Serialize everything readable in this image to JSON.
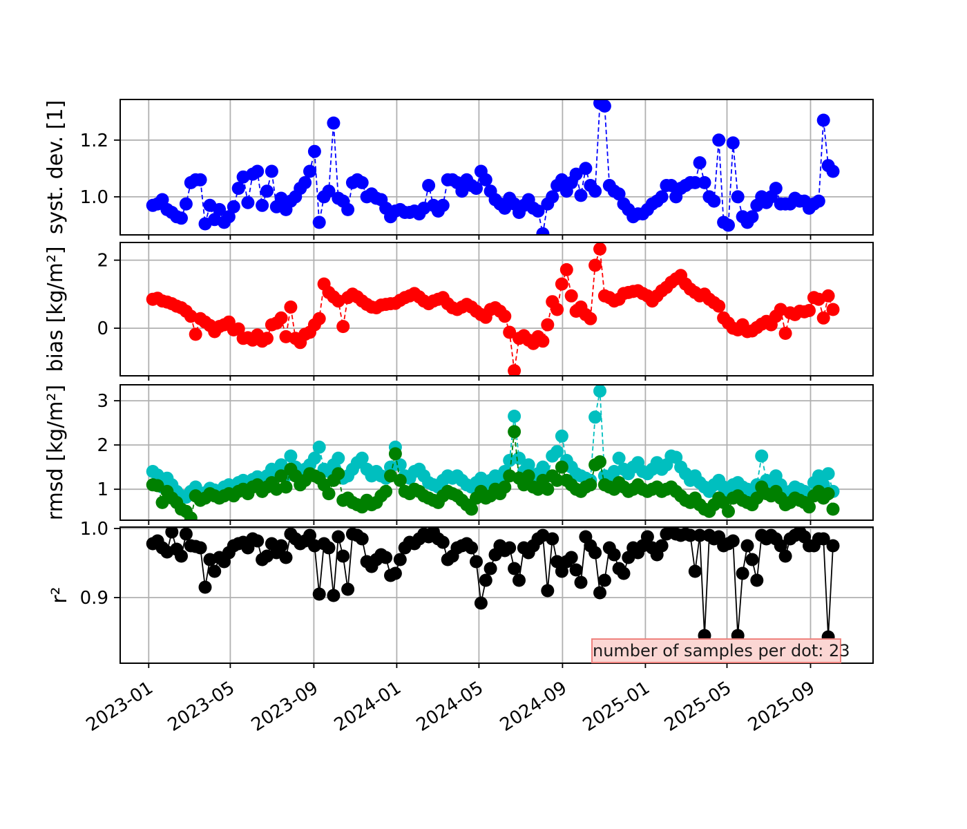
{
  "annotation": {
    "text": "number of samples per dot: 23",
    "bg_color": "#fbd6d3",
    "border_color": "#ef827e"
  },
  "style": {
    "grid_color": "#b0b0b0",
    "spine_color": "#000000",
    "background": "#ffffff"
  },
  "x_axis": {
    "start_date": "2023-01-01",
    "tick_labels": [
      "2023-01",
      "2023-05",
      "2023-09",
      "2024-01",
      "2024-05",
      "2024-09",
      "2025-01",
      "2025-05",
      "2025-09"
    ],
    "tick_days": [
      0,
      120,
      243,
      365,
      486,
      609,
      731,
      851,
      974
    ],
    "lim_days": [
      -42,
      1066
    ]
  },
  "samples": {
    "start_day": 6,
    "step_days": 7,
    "count": 144,
    "cadence": "weekly",
    "samples_per_dot": 23
  },
  "chart_data": [
    {
      "type": "line",
      "panel_id": "syst-dev",
      "ylabel": "syst. dev. [1]",
      "ylim": [
        0.866,
        1.343
      ],
      "yticks": [
        1.0,
        1.2
      ],
      "ytick_labels": [
        "1.0",
        "1.2"
      ],
      "grid": true,
      "series": [
        {
          "name": "syst-dev",
          "color": "#0000ff",
          "linestyle": "dashed",
          "marker": "o",
          "values": [
            0.97,
            0.975,
            0.99,
            0.955,
            0.945,
            0.93,
            0.925,
            0.975,
            1.05,
            1.06,
            1.06,
            0.905,
            0.97,
            0.92,
            0.955,
            0.91,
            0.93,
            0.965,
            1.03,
            1.07,
            0.98,
            1.08,
            1.09,
            0.97,
            1.02,
            1.09,
            0.965,
            0.995,
            0.955,
            0.985,
            1.0,
            1.03,
            1.05,
            1.09,
            1.16,
            0.91,
            1.0,
            1.02,
            1.26,
            0.995,
            0.985,
            0.955,
            1.05,
            1.06,
            1.05,
            1.0,
            1.01,
            0.995,
            0.99,
            0.96,
            0.93,
            0.95,
            0.955,
            0.945,
            0.945,
            0.95,
            0.94,
            0.96,
            1.04,
            0.97,
            0.95,
            0.97,
            1.06,
            1.06,
            1.05,
            1.02,
            1.06,
            1.04,
            1.03,
            1.09,
            1.06,
            1.02,
            0.99,
            0.975,
            0.96,
            0.995,
            0.975,
            0.945,
            0.97,
            0.99,
            0.96,
            0.95,
            0.87,
            0.975,
            1.0,
            1.04,
            1.06,
            1.02,
            1.05,
            1.08,
            1.005,
            1.1,
            1.04,
            1.02,
            1.33,
            1.32,
            1.04,
            1.02,
            1.01,
            0.975,
            0.955,
            0.93,
            0.94,
            0.94,
            0.955,
            0.975,
            0.985,
            1.0,
            1.04,
            1.04,
            1.0,
            1.03,
            1.04,
            1.05,
            1.05,
            1.12,
            1.05,
            1.0,
            0.985,
            1.2,
            0.91,
            0.9,
            1.19,
            1.0,
            0.93,
            0.91,
            0.93,
            0.97,
            1.0,
            0.98,
            1.0,
            1.03,
            0.975,
            0.975,
            0.975,
            0.995,
            0.985,
            0.985,
            0.96,
            0.975,
            0.985,
            1.27,
            1.11,
            1.09
          ]
        }
      ]
    },
    {
      "type": "line",
      "panel_id": "bias",
      "ylabel": "bias [kg/m²]",
      "ylim": [
        -1.4,
        2.52
      ],
      "yticks": [
        0,
        2
      ],
      "ytick_labels": [
        "0",
        "2"
      ],
      "grid": true,
      "series": [
        {
          "name": "bias",
          "color": "#ff0000",
          "linestyle": "dashed",
          "marker": "o",
          "values": [
            0.85,
            0.88,
            0.8,
            0.77,
            0.72,
            0.65,
            0.6,
            0.5,
            0.35,
            -0.18,
            0.28,
            0.18,
            0.08,
            -0.1,
            0.05,
            0.1,
            0.18,
            -0.05,
            -0.02,
            -0.3,
            -0.28,
            -0.35,
            -0.2,
            -0.38,
            -0.3,
            0.1,
            0.15,
            0.3,
            -0.25,
            0.62,
            -0.3,
            -0.42,
            -0.18,
            -0.12,
            0.1,
            0.28,
            1.3,
            1.05,
            0.92,
            0.8,
            0.05,
            0.9,
            1.0,
            0.92,
            0.8,
            0.7,
            0.62,
            0.6,
            0.68,
            0.7,
            0.72,
            0.73,
            0.82,
            0.9,
            0.95,
            1.02,
            0.92,
            0.8,
            0.72,
            0.8,
            0.85,
            0.9,
            0.72,
            0.6,
            0.55,
            0.62,
            0.7,
            0.62,
            0.5,
            0.4,
            0.32,
            0.55,
            0.6,
            0.5,
            0.35,
            -0.12,
            -1.25,
            -0.3,
            -0.22,
            -0.35,
            -0.45,
            -0.25,
            -0.38,
            0.1,
            0.78,
            0.55,
            1.3,
            1.72,
            0.95,
            0.5,
            0.62,
            0.4,
            0.28,
            1.85,
            2.33,
            0.95,
            0.9,
            0.8,
            0.85,
            1.02,
            1.05,
            1.08,
            1.1,
            1.02,
            0.95,
            0.8,
            0.95,
            1.1,
            1.2,
            1.35,
            1.45,
            1.55,
            1.3,
            1.15,
            1.05,
            0.95,
            1.0,
            0.85,
            0.75,
            0.65,
            0.3,
            0.15,
            0.0,
            -0.05,
            0.1,
            -0.1,
            -0.08,
            0.02,
            0.12,
            0.2,
            0.1,
            0.35,
            0.55,
            -0.15,
            0.45,
            0.4,
            0.5,
            0.48,
            0.52,
            0.9,
            0.85,
            0.3,
            0.95,
            0.55
          ]
        }
      ]
    },
    {
      "type": "line",
      "panel_id": "rmsd",
      "ylabel": "rmsd [kg/m²]",
      "ylim": [
        0.3,
        3.36
      ],
      "yticks": [
        1,
        2,
        3
      ],
      "ytick_labels": [
        "1",
        "2",
        "3"
      ],
      "grid": true,
      "series": [
        {
          "name": "rmsd-total",
          "color": "#00bfbf",
          "linestyle": "dashed",
          "marker": "o",
          "values": [
            1.4,
            1.32,
            1.05,
            1.25,
            1.1,
            0.95,
            0.85,
            0.82,
            0.95,
            1.05,
            0.9,
            0.92,
            1.02,
            0.98,
            0.92,
            1.05,
            1.1,
            1.0,
            1.15,
            1.2,
            1.05,
            1.22,
            1.28,
            1.1,
            1.3,
            1.45,
            1.3,
            1.55,
            1.3,
            1.75,
            1.5,
            1.35,
            1.45,
            1.55,
            1.7,
            1.95,
            1.45,
            1.4,
            1.55,
            1.7,
            1.25,
            1.3,
            1.45,
            1.6,
            1.7,
            1.45,
            1.3,
            1.4,
            1.3,
            1.25,
            1.5,
            1.95,
            1.55,
            1.3,
            1.25,
            1.4,
            1.45,
            1.3,
            1.15,
            1.1,
            1.05,
            1.2,
            1.3,
            1.25,
            1.3,
            1.2,
            1.1,
            1.05,
            1.15,
            1.25,
            1.1,
            1.2,
            1.3,
            1.25,
            1.4,
            1.65,
            2.65,
            1.7,
            1.4,
            1.55,
            1.3,
            1.35,
            1.5,
            1.3,
            1.75,
            1.85,
            2.2,
            1.65,
            1.5,
            1.35,
            1.3,
            1.25,
            1.2,
            2.63,
            3.22,
            1.3,
            1.25,
            1.4,
            1.7,
            1.45,
            1.35,
            1.5,
            1.6,
            1.4,
            1.35,
            1.45,
            1.6,
            1.45,
            1.55,
            1.75,
            1.72,
            1.5,
            1.35,
            1.2,
            1.3,
            1.15,
            1.05,
            0.95,
            1.1,
            1.2,
            1.05,
            0.85,
            1.1,
            1.15,
            1.05,
            1.0,
            0.95,
            1.1,
            1.75,
            1.2,
            1.15,
            1.3,
            1.1,
            0.9,
            0.95,
            1.05,
            1.0,
            0.95,
            0.85,
            1.15,
            1.3,
            1.1,
            1.35,
            0.95
          ]
        },
        {
          "name": "rmsd-secondary",
          "color": "#008000",
          "linestyle": "dashed",
          "marker": "o",
          "values": [
            1.1,
            1.08,
            0.7,
            0.95,
            0.8,
            0.7,
            0.55,
            0.5,
            0.35,
            0.85,
            0.75,
            0.8,
            0.9,
            0.85,
            0.8,
            0.85,
            0.9,
            0.85,
            0.95,
            1.0,
            0.9,
            1.05,
            1.1,
            0.95,
            1.05,
            1.15,
            1.0,
            1.3,
            1.05,
            1.45,
            1.3,
            1.1,
            1.2,
            1.35,
            1.3,
            1.25,
            1.1,
            0.9,
            1.2,
            1.35,
            0.75,
            0.8,
            0.7,
            0.65,
            0.6,
            0.75,
            0.65,
            0.7,
            0.85,
            0.95,
            1.3,
            1.8,
            1.2,
            0.95,
            0.9,
            1.0,
            0.95,
            0.85,
            0.8,
            0.75,
            0.7,
            0.85,
            0.95,
            0.9,
            0.85,
            0.75,
            0.65,
            0.55,
            0.8,
            0.95,
            0.8,
            0.85,
            1.0,
            0.9,
            1.05,
            1.3,
            2.3,
            1.25,
            1.1,
            1.3,
            1.05,
            1.0,
            1.2,
            1.0,
            1.3,
            1.2,
            1.5,
            1.2,
            1.1,
            1.0,
            0.95,
            1.05,
            1.1,
            1.55,
            1.62,
            1.1,
            1.05,
            1.0,
            1.15,
            1.05,
            0.95,
            1.0,
            1.1,
            1.0,
            0.95,
            1.0,
            1.05,
            0.95,
            1.0,
            1.05,
            0.95,
            0.85,
            0.75,
            0.7,
            0.8,
            0.65,
            0.55,
            0.5,
            0.65,
            0.8,
            0.7,
            0.5,
            0.8,
            0.85,
            0.75,
            0.7,
            0.65,
            0.8,
            1.05,
            0.9,
            0.85,
            0.95,
            0.8,
            0.65,
            0.7,
            0.8,
            0.75,
            0.7,
            0.6,
            0.85,
            0.95,
            0.8,
            0.9,
            0.55
          ]
        }
      ]
    },
    {
      "type": "line",
      "panel_id": "r2",
      "ylabel": "r²",
      "ylim": [
        0.805,
        1.002
      ],
      "yticks": [
        0.9,
        1.0
      ],
      "ytick_labels": [
        "0.9",
        "1.0"
      ],
      "grid": true,
      "series": [
        {
          "name": "r-squared",
          "color": "#000000",
          "linestyle": "solid",
          "marker": "o",
          "values": [
            0.978,
            0.982,
            0.972,
            0.966,
            0.995,
            0.97,
            0.96,
            0.992,
            0.975,
            0.974,
            0.972,
            0.915,
            0.955,
            0.938,
            0.958,
            0.952,
            0.965,
            0.975,
            0.978,
            0.98,
            0.972,
            0.985,
            0.982,
            0.955,
            0.96,
            0.978,
            0.965,
            0.975,
            0.958,
            0.992,
            0.985,
            0.978,
            0.982,
            0.99,
            0.975,
            0.905,
            0.978,
            0.972,
            0.903,
            0.988,
            0.96,
            0.912,
            0.992,
            0.99,
            0.985,
            0.952,
            0.945,
            0.955,
            0.962,
            0.958,
            0.932,
            0.935,
            0.955,
            0.972,
            0.98,
            0.978,
            0.985,
            0.992,
            0.988,
            0.995,
            0.985,
            0.98,
            0.955,
            0.96,
            0.972,
            0.975,
            0.978,
            0.972,
            0.952,
            0.892,
            0.925,
            0.942,
            0.962,
            0.975,
            0.968,
            0.972,
            0.942,
            0.925,
            0.972,
            0.965,
            0.975,
            0.985,
            0.99,
            0.91,
            0.985,
            0.952,
            0.938,
            0.952,
            0.958,
            0.94,
            0.922,
            0.988,
            0.975,
            0.965,
            0.907,
            0.925,
            0.972,
            0.962,
            0.942,
            0.935,
            0.958,
            0.972,
            0.965,
            0.975,
            0.988,
            0.972,
            0.962,
            0.975,
            0.992,
            0.995,
            0.992,
            0.99,
            0.992,
            0.99,
            0.938,
            0.99,
            0.845,
            0.99,
            0.985,
            0.988,
            0.975,
            0.978,
            0.982,
            0.845,
            0.935,
            0.975,
            0.955,
            0.925,
            0.99,
            0.985,
            0.99,
            0.985,
            0.975,
            0.96,
            0.985,
            0.99,
            0.995,
            0.988,
            0.975,
            0.975,
            0.985,
            0.985,
            0.843,
            0.975
          ]
        }
      ]
    }
  ]
}
